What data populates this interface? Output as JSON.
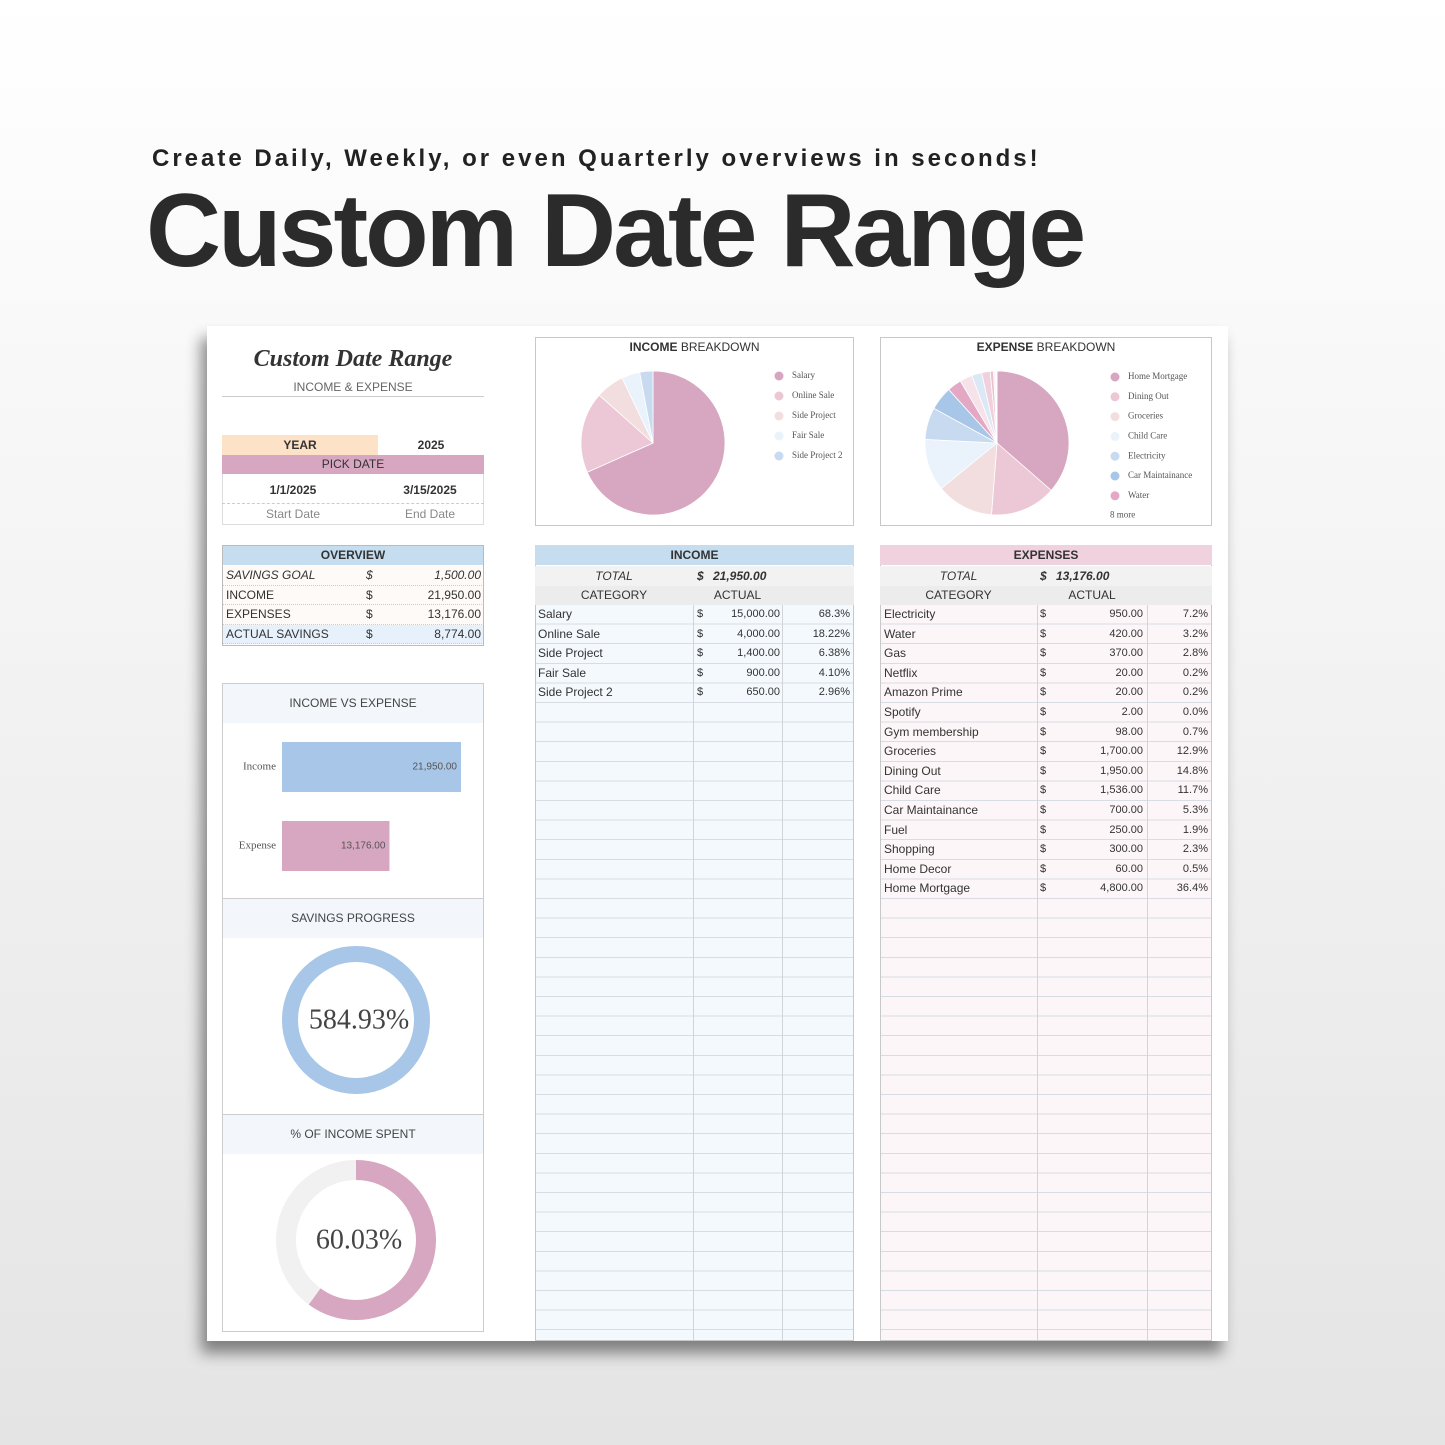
{
  "header": {
    "tagline": "Create Daily, Weekly, or even Quarterly overviews in seconds!",
    "title": "Custom Date Range"
  },
  "sheet": {
    "title": "Custom Date Range",
    "subtitle": "INCOME & EXPENSE",
    "year_label": "YEAR",
    "year": "2025",
    "pick_date": "PICK DATE",
    "start_date": "1/1/2025",
    "end_date": "3/15/2025",
    "start_label": "Start Date",
    "end_label": "End Date",
    "overview": {
      "title": "OVERVIEW",
      "rows": [
        [
          "SAVINGS GOAL",
          "$",
          "1,500.00"
        ],
        [
          "INCOME",
          "$",
          "21,950.00"
        ],
        [
          "EXPENSES",
          "$",
          "13,176.00"
        ],
        [
          "ACTUAL SAVINGS",
          "$",
          "8,774.00"
        ]
      ]
    },
    "income_table": {
      "title": "INCOME",
      "total_label": "TOTAL",
      "total_currency": "$",
      "total": "21,950.00",
      "headers": [
        "CATEGORY",
        "ACTUAL"
      ],
      "rows": [
        [
          "Salary",
          "$",
          "15,000.00",
          "68.3%"
        ],
        [
          "Online Sale",
          "$",
          "4,000.00",
          "18.22%"
        ],
        [
          "Side Project",
          "$",
          "1,400.00",
          "6.38%"
        ],
        [
          "Fair Sale",
          "$",
          "900.00",
          "4.10%"
        ],
        [
          "Side Project 2",
          "$",
          "650.00",
          "2.96%"
        ]
      ]
    },
    "expense_table": {
      "title": "EXPENSES",
      "total_label": "TOTAL",
      "total_currency": "$",
      "total": "13,176.00",
      "headers": [
        "CATEGORY",
        "ACTUAL"
      ],
      "rows": [
        [
          "Electricity",
          "$",
          "950.00",
          "7.2%"
        ],
        [
          "Water",
          "$",
          "420.00",
          "3.2%"
        ],
        [
          "Gas",
          "$",
          "370.00",
          "2.8%"
        ],
        [
          "Netflix",
          "$",
          "20.00",
          "0.2%"
        ],
        [
          "Amazon Prime",
          "$",
          "20.00",
          "0.2%"
        ],
        [
          "Spotify",
          "$",
          "2.00",
          "0.0%"
        ],
        [
          "Gym membership",
          "$",
          "98.00",
          "0.7%"
        ],
        [
          "Groceries",
          "$",
          "1,700.00",
          "12.9%"
        ],
        [
          "Dining Out",
          "$",
          "1,950.00",
          "14.8%"
        ],
        [
          "Child Care",
          "$",
          "1,536.00",
          "11.7%"
        ],
        [
          "Car Maintainance",
          "$",
          "700.00",
          "5.3%"
        ],
        [
          "Fuel",
          "$",
          "250.00",
          "1.9%"
        ],
        [
          "Shopping",
          "$",
          "300.00",
          "2.3%"
        ],
        [
          "Home Decor",
          "$",
          "60.00",
          "0.5%"
        ],
        [
          "Home Mortgage",
          "$",
          "4,800.00",
          "36.4%"
        ]
      ]
    }
  },
  "chart_data": [
    {
      "type": "bar",
      "title": "INCOME VS EXPENSE",
      "categories": [
        "Income",
        "Expense"
      ],
      "values": [
        21950,
        13176
      ],
      "value_labels": [
        "21,950.00",
        "13,176.00"
      ],
      "colors": [
        "#a8c7e8",
        "#d7a6c0"
      ]
    },
    {
      "type": "donut",
      "title": "SAVINGS PROGRESS",
      "values": [
        584.93
      ],
      "value_labels": [
        "584.93%"
      ],
      "color": "#a8c7e8",
      "track_color": "#eef2f6"
    },
    {
      "type": "donut",
      "title": "% OF INCOME SPENT",
      "values": [
        60.03
      ],
      "value_labels": [
        "60.03%"
      ],
      "color": "#d7a6c0",
      "track_color": "#f1f1f1"
    },
    {
      "type": "pie",
      "title": [
        "INCOME",
        "BREAKDOWN"
      ],
      "categories": [
        "Salary",
        "Online Sale",
        "Side Project",
        "Fair Sale",
        "Side Project 2"
      ],
      "values": [
        15000,
        4000,
        1400,
        900,
        650
      ],
      "colors": [
        "#d7a6c0",
        "#ecc8d7",
        "#f2dede",
        "#eaf2fb",
        "#c7daf0"
      ]
    },
    {
      "type": "pie",
      "title": [
        "EXPENSE",
        "BREAKDOWN"
      ],
      "categories": [
        "Home Mortgage",
        "Dining Out",
        "Groceries",
        "Child Care",
        "Electricity",
        "Car Maintainance",
        "Water",
        null,
        null,
        null,
        null,
        null,
        null,
        null,
        null
      ],
      "values": [
        4800,
        1950,
        1700,
        1536,
        950,
        700,
        420,
        370,
        300,
        250,
        98,
        60,
        20,
        20,
        2
      ],
      "colors": [
        "#d7a6c0",
        "#ecc8d7",
        "#f2dede",
        "#eaf2fb",
        "#c7daf0",
        "#a8c7e8",
        "#e3a8c3",
        "#f6e3ea",
        "#dbe8f5",
        "#f0d0dc",
        "#e9c2d2",
        "#fbeef2",
        "#bcd3ec",
        "#f5d9e3",
        "#dfe9f4"
      ],
      "legend_more": "8 more"
    }
  ]
}
